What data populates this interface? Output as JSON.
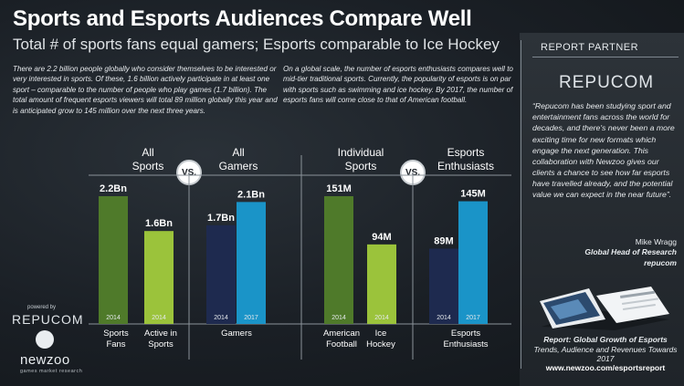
{
  "header": {
    "title": "Sports and Esports Audiences Compare Well",
    "subtitle": "Total # of sports fans equal gamers; Esports comparable to Ice Hockey"
  },
  "intro": {
    "left": "There are 2.2 billion people globally who consider themselves to be interested or very interested in sports. Of these, 1.6 billion actively participate in at least one sport – comparable to the number of people who play games (1.7 billion). The total amount of frequent esports viewers will total 89 million globally this year and is anticipated grow to 145 million over the next three years.",
    "right": "On a global scale, the number of esports enthusiasts compares well to mid-tier traditional sports. Currently, the popularity of esports is on par with sports such as swimming and ice hockey. By 2017, the number of esports fans will come close to that of American football."
  },
  "groups": {
    "g1": "All\nSports",
    "g2": "All\nGamers",
    "g3": "Individual\nSports",
    "g4": "Esports\nEnthusiasts",
    "vs": "VS."
  },
  "categories": {
    "c1": "Sports\nFans",
    "c2": "Active in\nSports",
    "c3": "Gamers",
    "c4": "American\nFootball",
    "c5": "Ice\nHockey",
    "c6": "Esports\nEnthusiasts"
  },
  "colors": {
    "dark_green": "#4f7a2a",
    "light_green": "#9bc33b",
    "navy": "#1e2a4f",
    "teal": "#1a94c8"
  },
  "chart_data": [
    {
      "type": "bar",
      "panel": "left",
      "bars": [
        {
          "value": 2.2,
          "label": "2.2Bn",
          "year": "2014",
          "category": "Sports Fans",
          "color": "#4f7a2a"
        },
        {
          "value": 1.6,
          "label": "1.6Bn",
          "year": "2014",
          "category": "Active in Sports",
          "color": "#9bc33b"
        },
        {
          "value": 1.7,
          "label": "1.7Bn",
          "year": "2014",
          "category": "Gamers",
          "color": "#1e2a4f"
        },
        {
          "value": 2.1,
          "label": "2.1Bn",
          "year": "2017",
          "category": "Gamers",
          "color": "#1a94c8"
        }
      ]
    },
    {
      "type": "bar",
      "panel": "right",
      "bars": [
        {
          "value": 151,
          "label": "151M",
          "year": "2014",
          "category": "American Football",
          "color": "#4f7a2a"
        },
        {
          "value": 94,
          "label": "94M",
          "year": "2014",
          "category": "Ice Hockey",
          "color": "#9bc33b"
        },
        {
          "value": 89,
          "label": "89M",
          "year": "2014",
          "category": "Esports Enthusiasts",
          "color": "#1e2a4f"
        },
        {
          "value": 145,
          "label": "145M",
          "year": "2017",
          "category": "Esports Enthusiasts",
          "color": "#1a94c8"
        }
      ]
    }
  ],
  "partner": {
    "heading": "REPORT PARTNER",
    "logo": "REPUCOM",
    "quote": "“Repucom has been studying sport and entertainment fans across the world for decades, and there's never been a more exciting time for new formats which engage the next generation. This collaboration with Newzoo gives our clients a chance to see how far esports have travelled already, and the potential value we can expect in the near future”.",
    "name": "Mike Wragg",
    "role": "Global Head of Research",
    "company": "repucom"
  },
  "report": {
    "title": "Report: Global Growth of Esports",
    "subtitle": "Trends, Audience and Revenues Towards 2017",
    "url": "www.newzoo.com/esportsreport"
  },
  "branding": {
    "powered_by": "powered by",
    "repucom": "REPUCOM",
    "newzoo": "newzoo",
    "newzoo_tag": "games market research"
  }
}
